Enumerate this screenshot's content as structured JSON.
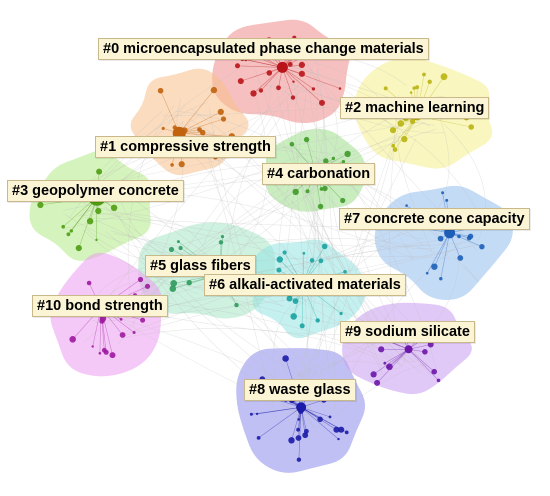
{
  "clusters": [
    {
      "id": "c0",
      "label": "#0 microencapsulated phase change materials",
      "color": "#b8141a",
      "fill": "#f08c8c"
    },
    {
      "id": "c1",
      "label": "#1 compressive strength",
      "color": "#c0620e",
      "fill": "#f7c08a"
    },
    {
      "id": "c2",
      "label": "#2 machine learning",
      "color": "#b9b412",
      "fill": "#f4ef8a"
    },
    {
      "id": "c3",
      "label": "#3 geopolymer concrete",
      "color": "#4f9d12",
      "fill": "#b3ea85"
    },
    {
      "id": "c4",
      "label": "#4 carbonation",
      "color": "#3f9a28",
      "fill": "#9edf8c"
    },
    {
      "id": "c5",
      "label": "#5 glass fibers",
      "color": "#2f9a5e",
      "fill": "#a6e6c7"
    },
    {
      "id": "c6",
      "label": "#6 alkali-activated materials",
      "color": "#1aa3a0",
      "fill": "#94e3e2"
    },
    {
      "id": "c7",
      "label": "#7 concrete cone capacity",
      "color": "#1d5fb8",
      "fill": "#93bdee"
    },
    {
      "id": "c8",
      "label": "#8 waste glass",
      "color": "#1b1ba8",
      "fill": "#8c8ceb"
    },
    {
      "id": "c9",
      "label": "#9 sodium silicate",
      "color": "#6b16a8",
      "fill": "#c99cf0"
    },
    {
      "id": "c10",
      "label": "#10 bond strength",
      "color": "#9d1aa0",
      "fill": "#ec9cf0"
    }
  ],
  "colors": {
    "edge": "#bdbdbd",
    "label_background": "#fbf5d6",
    "label_border": "#c9b98a"
  }
}
